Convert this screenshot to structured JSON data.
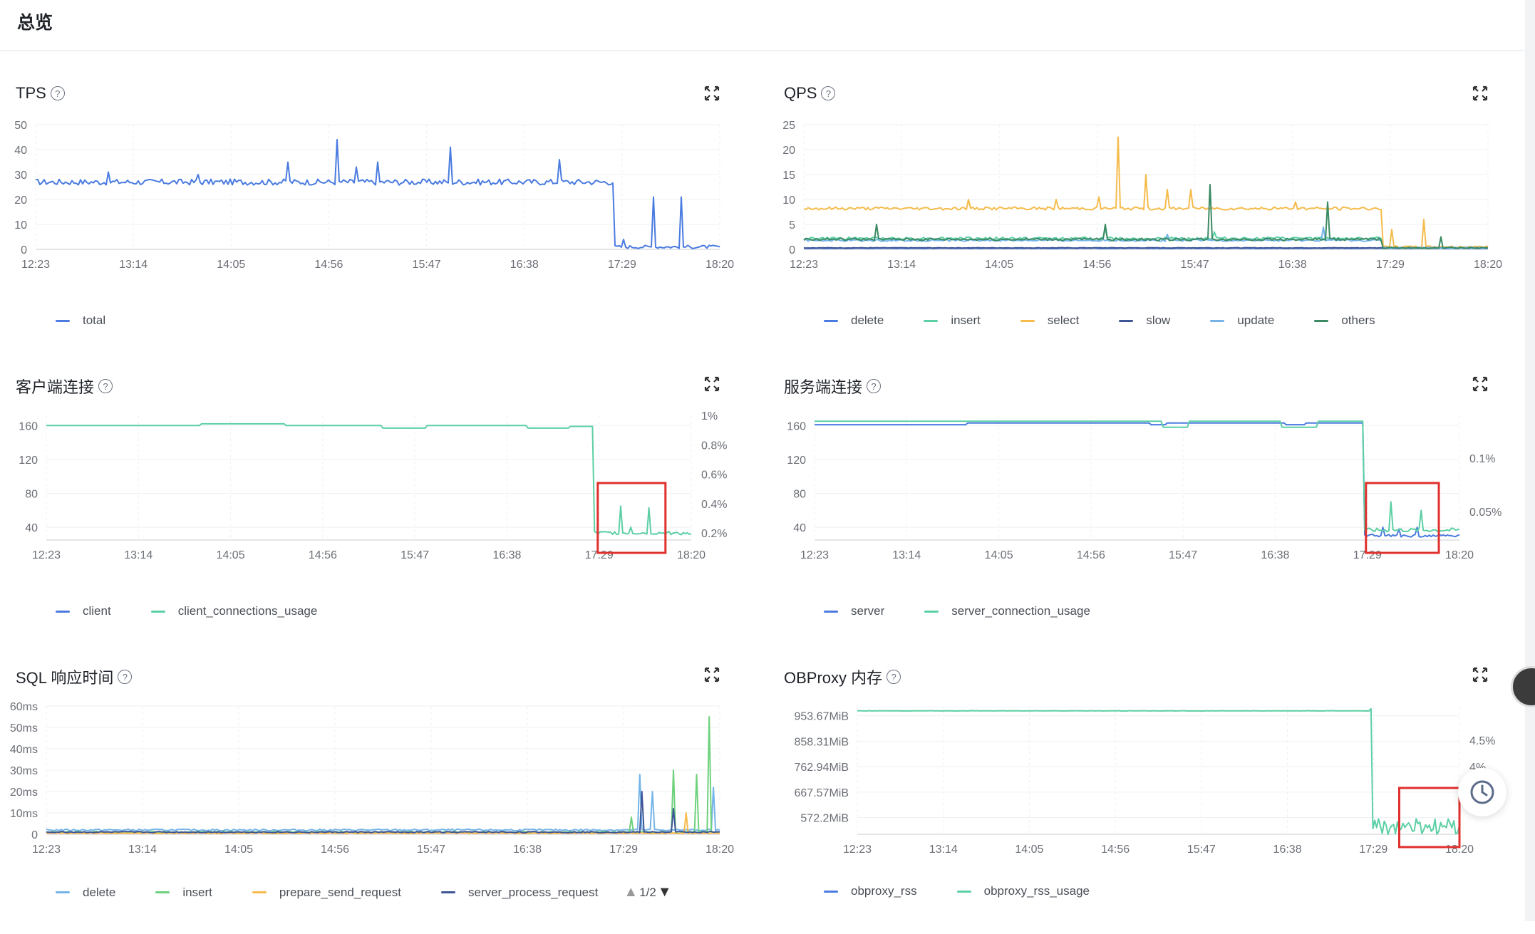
{
  "page": {
    "title": "总览"
  },
  "panels": [
    {
      "id": "tps",
      "title": "TPS",
      "chart": {
        "type": "line",
        "x_ticks": [
          "12:23",
          "13:14",
          "14:05",
          "14:56",
          "15:47",
          "16:38",
          "17:29",
          "18:20"
        ],
        "y_ticks": [
          "0",
          "10",
          "20",
          "30",
          "40",
          "50"
        ],
        "ylim": [
          0,
          50
        ],
        "series": [
          {
            "name": "total",
            "color": "#4a7be0",
            "baseline": 27,
            "noise": 1.2,
            "drop_at": 0.845,
            "post": 1,
            "spikes": [
              [
                0.105,
                31
              ],
              [
                0.238,
                30
              ],
              [
                0.368,
                21
              ],
              [
                0.37,
                35
              ],
              [
                0.44,
                44
              ],
              [
                0.47,
                33
              ],
              [
                0.5,
                35
              ],
              [
                0.605,
                41
              ],
              [
                0.765,
                36
              ],
              [
                0.86,
                4
              ],
              [
                0.902,
                21
              ],
              [
                0.945,
                21
              ]
            ]
          }
        ]
      },
      "legend": [
        "total"
      ]
    },
    {
      "id": "qps",
      "title": "QPS",
      "chart": {
        "type": "line",
        "x_ticks": [
          "12:23",
          "13:14",
          "14:05",
          "14:56",
          "15:47",
          "16:38",
          "17:29",
          "18:20"
        ],
        "y_ticks": [
          "0",
          "5",
          "10",
          "15",
          "20",
          "25"
        ],
        "ylim": [
          0,
          25
        ],
        "series": [
          {
            "name": "delete",
            "color": "#4a7be0",
            "baseline": 0.2,
            "noise": 0.05,
            "drop_at": 1.0,
            "post": 0.2,
            "spikes": []
          },
          {
            "name": "insert",
            "color": "#5ccfa4",
            "baseline": 2.2,
            "noise": 0.25,
            "drop_at": 0.845,
            "post": 0.3,
            "spikes": [
              [
                0.44,
                4
              ],
              [
                0.6,
                3.5
              ]
            ]
          },
          {
            "name": "select",
            "color": "#f5bb4b",
            "baseline": 8.2,
            "noise": 0.3,
            "drop_at": 0.845,
            "post": 0.5,
            "spikes": [
              [
                0.24,
                10
              ],
              [
                0.37,
                10
              ],
              [
                0.43,
                10.5
              ],
              [
                0.46,
                22.5
              ],
              [
                0.5,
                15
              ],
              [
                0.53,
                12
              ],
              [
                0.565,
                12
              ],
              [
                0.72,
                9.5
              ],
              [
                0.86,
                4
              ],
              [
                0.905,
                6
              ]
            ]
          },
          {
            "name": "slow",
            "color": "#3e5596",
            "baseline": 0.3,
            "noise": 0.05,
            "drop_at": 1.0,
            "post": 0.3,
            "spikes": []
          },
          {
            "name": "update",
            "color": "#74b4e8",
            "baseline": 1.8,
            "noise": 0.2,
            "drop_at": 0.845,
            "post": 0.3,
            "spikes": [
              [
                0.53,
                3
              ],
              [
                0.76,
                4.5
              ]
            ]
          },
          {
            "name": "others",
            "color": "#3a8a63",
            "baseline": 2,
            "noise": 0.25,
            "drop_at": 0.845,
            "post": 0.3,
            "spikes": [
              [
                0.105,
                5
              ],
              [
                0.44,
                5
              ],
              [
                0.595,
                13
              ],
              [
                0.765,
                9.5
              ],
              [
                0.93,
                2.5
              ]
            ]
          }
        ]
      },
      "legend": [
        "delete",
        "insert",
        "select",
        "slow",
        "update",
        "others"
      ]
    },
    {
      "id": "client",
      "title": "客户端连接",
      "chart": {
        "type": "line",
        "x_ticks": [
          "12:23",
          "13:14",
          "14:05",
          "14:56",
          "15:47",
          "16:38",
          "17:29",
          "18:20"
        ],
        "y_ticks": [
          "40",
          "80",
          "120",
          "160"
        ],
        "y2_ticks": [
          "0.2%",
          "0.4%",
          "0.6%",
          "0.8%",
          "1%"
        ],
        "ylim": [
          25,
          172
        ],
        "highlight": [
          0.855,
          0.96
        ],
        "series": [
          {
            "name": "client",
            "color": "#4a7be0",
            "baseline": 160,
            "noise": 0,
            "drop_at": 1.0,
            "post": 160,
            "spikes": [],
            "hidden": true
          },
          {
            "name": "client_connections_usage",
            "color": "#5ccfa4",
            "baseline": 160,
            "noise": 0,
            "drop_at": 0.848,
            "post": 33,
            "steps": [
              [
                0.24,
                162
              ],
              [
                0.37,
                160
              ],
              [
                0.49,
                160
              ],
              [
                0.52,
                157
              ],
              [
                0.56,
                157
              ],
              [
                0.59,
                160
              ],
              [
                0.745,
                157
              ],
              [
                0.81,
                159
              ]
            ],
            "spikes": [
              [
                0.89,
                65
              ],
              [
                0.935,
                63
              ],
              [
                0.905,
                40
              ]
            ]
          }
        ]
      },
      "legend": [
        "client",
        "client_connections_usage"
      ]
    },
    {
      "id": "server",
      "title": "服务端连接",
      "chart": {
        "type": "line",
        "x_ticks": [
          "12:23",
          "13:14",
          "14:05",
          "14:56",
          "15:47",
          "16:38",
          "17:29",
          "18:20"
        ],
        "y_ticks": [
          "40",
          "80",
          "120",
          "160"
        ],
        "y2_ticks": [
          "0.05%",
          "0.1%"
        ],
        "ylim": [
          25,
          172
        ],
        "highlight": [
          0.855,
          0.968
        ],
        "series": [
          {
            "name": "server",
            "color": "#4a7be0",
            "baseline": 161,
            "noise": 0,
            "drop_at": 0.852,
            "post": 30,
            "steps": [
              [
                0.236,
                163
              ],
              [
                0.52,
                161
              ],
              [
                0.545,
                163
              ],
              [
                0.73,
                161
              ],
              [
                0.76,
                163
              ]
            ],
            "spikes": [
              [
                0.88,
                40
              ],
              [
                0.905,
                38
              ],
              [
                0.935,
                40
              ]
            ]
          },
          {
            "name": "server_connection_usage",
            "color": "#5ccfa4",
            "baseline": 165,
            "noise": 0,
            "drop_at": 0.852,
            "post": 37,
            "steps": [
              [
                0.54,
                158
              ],
              [
                0.58,
                165
              ],
              [
                0.725,
                158
              ],
              [
                0.78,
                165
              ]
            ],
            "spikes": [
              [
                0.895,
                70
              ],
              [
                0.94,
                60
              ]
            ]
          }
        ]
      },
      "legend": [
        "server",
        "server_connection_usage"
      ]
    },
    {
      "id": "sql",
      "title": "SQL 响应时间",
      "chart": {
        "type": "line",
        "x_ticks": [
          "12:23",
          "13:14",
          "14:05",
          "14:56",
          "15:47",
          "16:38",
          "17:29",
          "18:20"
        ],
        "y_ticks": [
          "0",
          "10ms",
          "20ms",
          "30ms",
          "40ms",
          "50ms",
          "60ms"
        ],
        "ylim": [
          0,
          60
        ],
        "series": [
          {
            "name": "delete",
            "color": "#74b4e8",
            "baseline": 2,
            "noise": 0.4,
            "drop_at": 1.0,
            "post": 2,
            "spikes": [
              [
                0.88,
                28
              ],
              [
                0.9,
                20
              ],
              [
                0.99,
                22
              ]
            ]
          },
          {
            "name": "insert",
            "color": "#6ed17c",
            "baseline": 1,
            "noise": 0.3,
            "drop_at": 1.0,
            "post": 1,
            "spikes": [
              [
                0.87,
                8
              ],
              [
                0.93,
                30
              ],
              [
                0.965,
                28
              ],
              [
                0.985,
                55
              ]
            ]
          },
          {
            "name": "prepare_send_request",
            "color": "#f5bb4b",
            "baseline": 0.5,
            "noise": 0.2,
            "drop_at": 1.0,
            "post": 0.5,
            "spikes": [
              [
                0.95,
                10
              ]
            ]
          },
          {
            "name": "server_process_request",
            "color": "#3e5596",
            "baseline": 1,
            "noise": 0.3,
            "drop_at": 1.0,
            "post": 1,
            "spikes": [
              [
                0.885,
                20
              ],
              [
                0.93,
                12
              ]
            ]
          }
        ]
      },
      "legend": [
        "delete",
        "insert",
        "prepare_send_request",
        "server_process_request"
      ],
      "pager": "1/2"
    },
    {
      "id": "obproxy",
      "title": "OBProxy 内存",
      "chart": {
        "type": "line",
        "x_ticks": [
          "12:23",
          "13:14",
          "14:05",
          "14:56",
          "15:47",
          "16:38",
          "17:29",
          "18:20"
        ],
        "y_ticks": [
          "572.2MiB",
          "667.57MiB",
          "762.94MiB",
          "858.31MiB",
          "953.67MiB"
        ],
        "y2_ticks": [
          "4%",
          "4.5%"
        ],
        "ylim": [
          510,
          990
        ],
        "highlight": [
          0.9,
          1.0
        ],
        "series": [
          {
            "name": "obproxy_rss",
            "color": "#4a7be0",
            "baseline": 972,
            "noise": 0,
            "drop_at": 1.0,
            "post": 972,
            "spikes": [],
            "hidden": true
          },
          {
            "name": "obproxy_rss_usage",
            "color": "#5ccfa4",
            "baseline": 972,
            "noise": 0.6,
            "drop_at": 0.856,
            "post": 540,
            "spikes": [
              [
                0.853,
                980
              ]
            ]
          }
        ]
      },
      "legend": [
        "obproxy_rss",
        "obproxy_rss_usage"
      ]
    }
  ]
}
